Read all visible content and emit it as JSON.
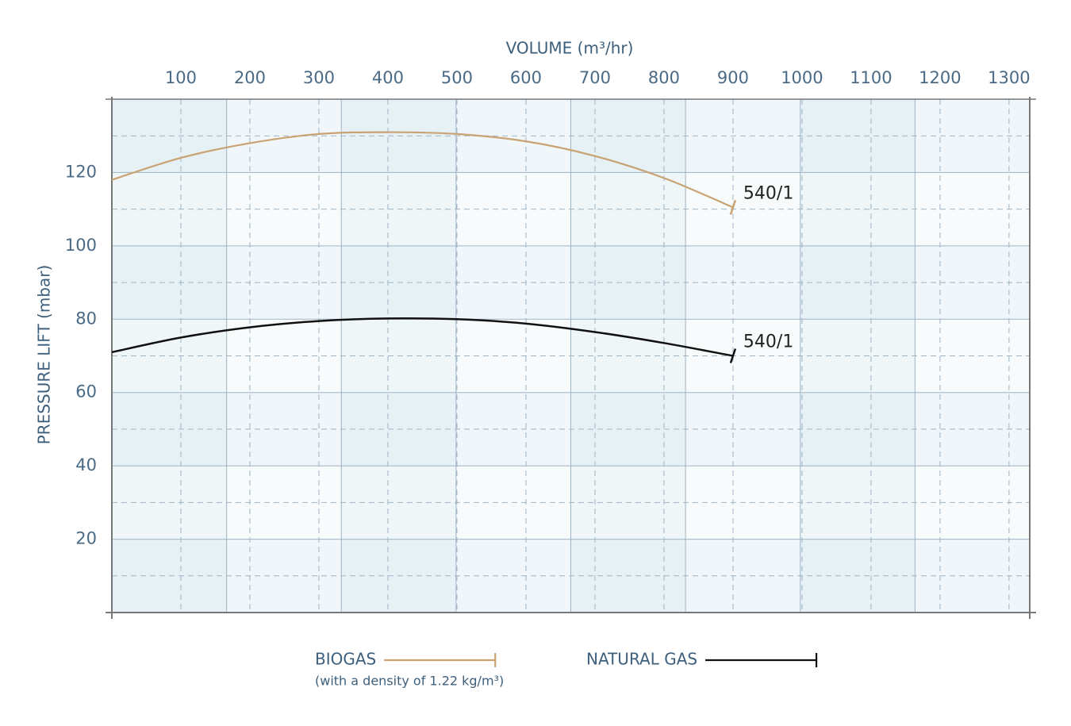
{
  "chart_data": {
    "type": "line",
    "xlabel": "VOLUME (m³/hr)",
    "ylabel": "PRESSURE LIFT (mbar)",
    "x": [
      0,
      100,
      200,
      300,
      400,
      500,
      600,
      700,
      800,
      900
    ],
    "series": [
      {
        "name": "BIOGAS",
        "note": "(with a density of 1.22 kg/m³)",
        "label": "540/1",
        "color": "#c9a373",
        "values": [
          118,
          124,
          128,
          130.5,
          131,
          130.5,
          128.5,
          124.5,
          118.5,
          110.5
        ]
      },
      {
        "name": "NATURAL GAS",
        "label": "540/1",
        "color": "#111111",
        "values": [
          71,
          75,
          77.8,
          79.5,
          80.2,
          80,
          78.8,
          76.5,
          73.5,
          70
        ]
      }
    ],
    "xlim": [
      0,
      1330
    ],
    "xticks": [
      100,
      200,
      300,
      400,
      500,
      600,
      700,
      800,
      900,
      1000,
      1100,
      1200,
      1300
    ],
    "ylim": [
      0,
      140
    ],
    "yticks": [
      20,
      40,
      60,
      80,
      100,
      120
    ],
    "grid": true
  }
}
